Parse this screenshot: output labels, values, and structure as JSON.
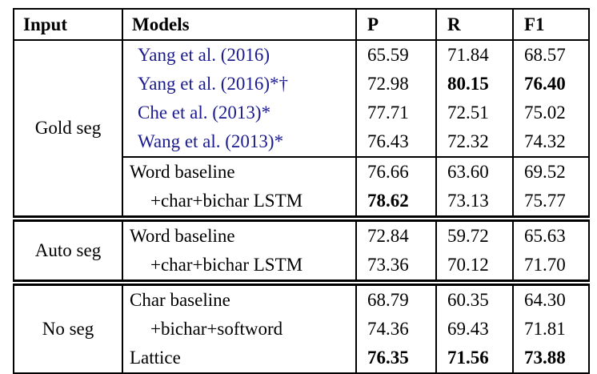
{
  "table": {
    "columns": {
      "input": "Input",
      "models": "Models",
      "p": "P",
      "r": "R",
      "f1": "F1"
    },
    "citation_color": "#1b1b8e",
    "sections": [
      {
        "input": "Gold seg",
        "rows": [
          {
            "model": "Yang et al. (2016)",
            "p": "65.59",
            "r": "71.84",
            "f1": "68.57"
          },
          {
            "model": "Yang et al. (2016)*†",
            "p": "72.98",
            "r": "80.15",
            "f1": "76.40"
          },
          {
            "model": "Che et al. (2013)*",
            "p": "77.71",
            "r": "72.51",
            "f1": "75.02"
          },
          {
            "model": "Wang et al. (2013)*",
            "p": "76.43",
            "r": "72.32",
            "f1": "74.32"
          },
          {
            "model": "Word baseline",
            "p": "76.66",
            "r": "63.60",
            "f1": "69.52"
          },
          {
            "model": "+char+bichar LSTM",
            "p": "78.62",
            "r": "73.13",
            "f1": "75.77"
          }
        ]
      },
      {
        "input": "Auto seg",
        "rows": [
          {
            "model": "Word baseline",
            "p": "72.84",
            "r": "59.72",
            "f1": "65.63"
          },
          {
            "model": "+char+bichar LSTM",
            "p": "73.36",
            "r": "70.12",
            "f1": "71.70"
          }
        ]
      },
      {
        "input": "No seg",
        "rows": [
          {
            "model": "Char baseline",
            "p": "68.79",
            "r": "60.35",
            "f1": "64.30"
          },
          {
            "model": "+bichar+softword",
            "p": "74.36",
            "r": "69.43",
            "f1": "71.81"
          },
          {
            "model": "Lattice",
            "p": "76.35",
            "r": "71.56",
            "f1": "73.88"
          }
        ]
      }
    ]
  }
}
